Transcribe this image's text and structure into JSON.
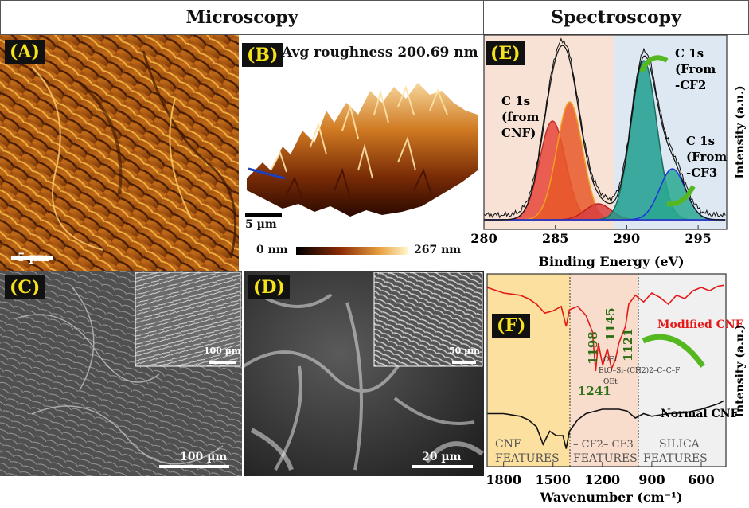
{
  "headers": {
    "microscopy": "Microscopy",
    "spectroscopy": "Spectroscopy"
  },
  "panels": {
    "a": {
      "tag": "(A)",
      "scale": "5 µm"
    },
    "b": {
      "tag": "(B)",
      "title": "Avg roughness 200.69 nm",
      "scale": "5 µm",
      "colorbar_min": "0 nm",
      "colorbar_max": "267 nm"
    },
    "c": {
      "tag": "(C)",
      "scale": "100 µm",
      "inset_scale": "100 µm"
    },
    "d": {
      "tag": "(D)",
      "scale": "20 µm",
      "inset_scale": "50 µm"
    },
    "e": {
      "tag": "(E)",
      "ylabel": "Intensity (a.u.)",
      "xlabel": "Binding Energy (eV)",
      "xticks": [
        "280",
        "285",
        "290",
        "295"
      ],
      "ann_cnf": [
        "C 1s",
        "(from",
        "CNF)"
      ],
      "ann_cf2": [
        "C 1s",
        "(From",
        "-CF2"
      ],
      "ann_cf3": [
        "C 1s",
        "(From",
        "-CF3"
      ]
    },
    "f": {
      "tag": "(F)",
      "ylabel": "Intensity (a.u.)",
      "xlabel": "Wavenumber (cm⁻¹)",
      "xticks": [
        "1800",
        "1500",
        "1200",
        "900",
        "600"
      ],
      "modified_label": "Modified CNF",
      "normal_label": "Normal CNF",
      "peaks": [
        "1198",
        "1145",
        "1121",
        "1241"
      ],
      "region_cnf": [
        "CNF",
        "FEATURES"
      ],
      "region_cf": [
        "– CF2– CF3",
        "FEATURES"
      ],
      "region_silica": [
        "SILICA",
        "FEATURES"
      ],
      "molecule": [
        "OEt",
        "EtO–Si–(CH2)2–C–C–F",
        "OEt"
      ]
    }
  },
  "chart_data": [
    {
      "type": "line",
      "title": "",
      "xlabel": "Binding Energy (eV)",
      "ylabel": "Intensity (a.u.)",
      "xlim": [
        280,
        297
      ],
      "series": [
        {
          "name": "C 1s (from CNF)",
          "center": 284.8,
          "amplitude": 0.62
        },
        {
          "name": "C 1s (from CNF)",
          "center": 286.0,
          "amplitude": 0.74
        },
        {
          "name": "C 1s (from CNF)",
          "center": 288.0,
          "amplitude": 0.1
        },
        {
          "name": "C 1s (From -CF2",
          "center": 291.2,
          "amplitude": 1.0
        },
        {
          "name": "C 1s (From -CF3",
          "center": 293.2,
          "amplitude": 0.32
        }
      ]
    },
    {
      "type": "line",
      "title": "",
      "xlabel": "Wavenumber (cm⁻¹)",
      "ylabel": "Intensity (a.u.)",
      "xlim": [
        1900,
        450
      ],
      "series": [
        {
          "name": "Modified CNF",
          "x": [
            1900,
            1800,
            1700,
            1650,
            1600,
            1550,
            1500,
            1450,
            1420,
            1400,
            1350,
            1300,
            1260,
            1241,
            1225,
            1198,
            1170,
            1145,
            1121,
            1100,
            1060,
            1040,
            1000,
            950,
            900,
            850,
            800,
            750,
            700,
            650,
            600,
            550,
            500,
            460
          ],
          "y": [
            0.95,
            0.9,
            0.88,
            0.85,
            0.8,
            0.72,
            0.74,
            0.78,
            0.6,
            0.75,
            0.78,
            0.7,
            0.55,
            0.2,
            0.45,
            0.25,
            0.4,
            0.22,
            0.3,
            0.45,
            0.6,
            0.8,
            0.88,
            0.82,
            0.9,
            0.86,
            0.8,
            0.88,
            0.85,
            0.92,
            0.95,
            0.92,
            0.96,
            0.97
          ]
        },
        {
          "name": "Normal CNF",
          "x": [
            1900,
            1800,
            1700,
            1650,
            1600,
            1560,
            1520,
            1480,
            1440,
            1420,
            1400,
            1350,
            1300,
            1200,
            1100,
            1050,
            1000,
            950,
            900,
            800,
            700,
            600,
            500,
            460
          ],
          "y": [
            0.55,
            0.55,
            0.52,
            0.48,
            0.4,
            0.2,
            0.35,
            0.3,
            0.3,
            0.15,
            0.35,
            0.48,
            0.55,
            0.6,
            0.6,
            0.58,
            0.5,
            0.55,
            0.52,
            0.55,
            0.56,
            0.6,
            0.66,
            0.7
          ]
        }
      ]
    }
  ]
}
